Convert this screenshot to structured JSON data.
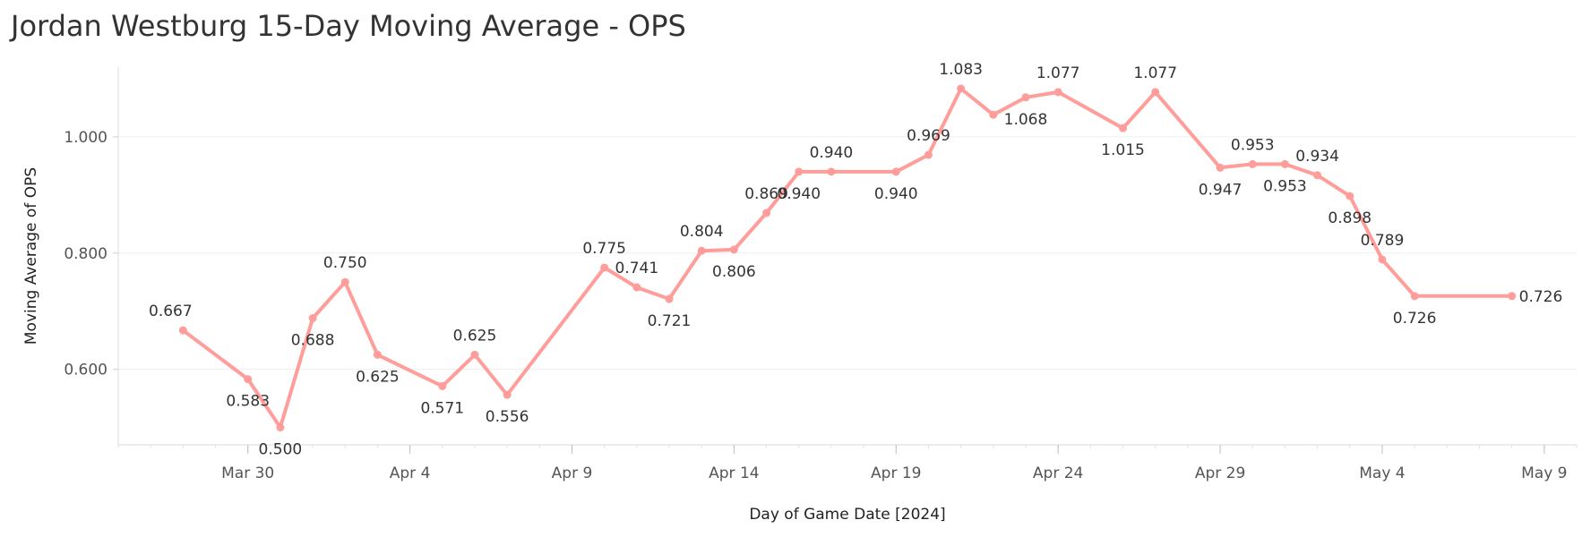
{
  "title": "Jordan Westburg 15-Day Moving Average - OPS",
  "chart_data": {
    "type": "line",
    "title": "Jordan Westburg 15-Day Moving Average - OPS",
    "xlabel": "Day of Game Date [2024]",
    "ylabel": "Moving Average of OPS",
    "x_ticks": [
      "Mar 30",
      "Apr 4",
      "Apr 9",
      "Apr 14",
      "Apr 19",
      "Apr 24",
      "Apr 29",
      "May 4",
      "May 9"
    ],
    "y_ticks": [
      "0.600",
      "0.800",
      "1.000"
    ],
    "ylim": [
      0.47,
      1.12
    ],
    "xlim": [
      "2024-03-26",
      "2024-05-10"
    ],
    "grid": true,
    "line_color": "#ff9d9a",
    "series": [
      {
        "points": [
          {
            "x": "2024-03-28",
            "y": 0.667,
            "label": "0.667"
          },
          {
            "x": "2024-03-30",
            "y": 0.583,
            "label": "0.583"
          },
          {
            "x": "2024-03-31",
            "y": 0.5,
            "label": "0.500"
          },
          {
            "x": "2024-04-01",
            "y": 0.688,
            "label": "0.688"
          },
          {
            "x": "2024-04-02",
            "y": 0.75,
            "label": "0.750"
          },
          {
            "x": "2024-04-03",
            "y": 0.625,
            "label": "0.625"
          },
          {
            "x": "2024-04-05",
            "y": 0.571,
            "label": "0.571"
          },
          {
            "x": "2024-04-06",
            "y": 0.625,
            "label": "0.625"
          },
          {
            "x": "2024-04-07",
            "y": 0.556,
            "label": "0.556"
          },
          {
            "x": "2024-04-10",
            "y": 0.775,
            "label": "0.775"
          },
          {
            "x": "2024-04-11",
            "y": 0.741,
            "label": "0.741"
          },
          {
            "x": "2024-04-12",
            "y": 0.721,
            "label": "0.721"
          },
          {
            "x": "2024-04-13",
            "y": 0.804,
            "label": "0.804"
          },
          {
            "x": "2024-04-14",
            "y": 0.806,
            "label": "0.806"
          },
          {
            "x": "2024-04-15",
            "y": 0.869,
            "label": "0.869"
          },
          {
            "x": "2024-04-16",
            "y": 0.94,
            "label": "0.940"
          },
          {
            "x": "2024-04-17",
            "y": 0.94,
            "label": "0.940"
          },
          {
            "x": "2024-04-19",
            "y": 0.94,
            "label": "0.940"
          },
          {
            "x": "2024-04-20",
            "y": 0.969,
            "label": "0.969"
          },
          {
            "x": "2024-04-21",
            "y": 1.083,
            "label": "1.083"
          },
          {
            "x": "2024-04-22",
            "y": 1.038,
            "label": ""
          },
          {
            "x": "2024-04-23",
            "y": 1.068,
            "label": "1.068"
          },
          {
            "x": "2024-04-24",
            "y": 1.077,
            "label": "1.077"
          },
          {
            "x": "2024-04-26",
            "y": 1.015,
            "label": "1.015"
          },
          {
            "x": "2024-04-27",
            "y": 1.077,
            "label": "1.077"
          },
          {
            "x": "2024-04-29",
            "y": 0.947,
            "label": "0.947"
          },
          {
            "x": "2024-04-30",
            "y": 0.953,
            "label": "0.953"
          },
          {
            "x": "2024-05-01",
            "y": 0.953,
            "label": "0.953"
          },
          {
            "x": "2024-05-02",
            "y": 0.934,
            "label": "0.934"
          },
          {
            "x": "2024-05-03",
            "y": 0.898,
            "label": "0.898"
          },
          {
            "x": "2024-05-04",
            "y": 0.789,
            "label": "0.789"
          },
          {
            "x": "2024-05-05",
            "y": 0.726,
            "label": "0.726"
          },
          {
            "x": "2024-05-08",
            "y": 0.726,
            "label": "0.726"
          }
        ]
      }
    ]
  }
}
